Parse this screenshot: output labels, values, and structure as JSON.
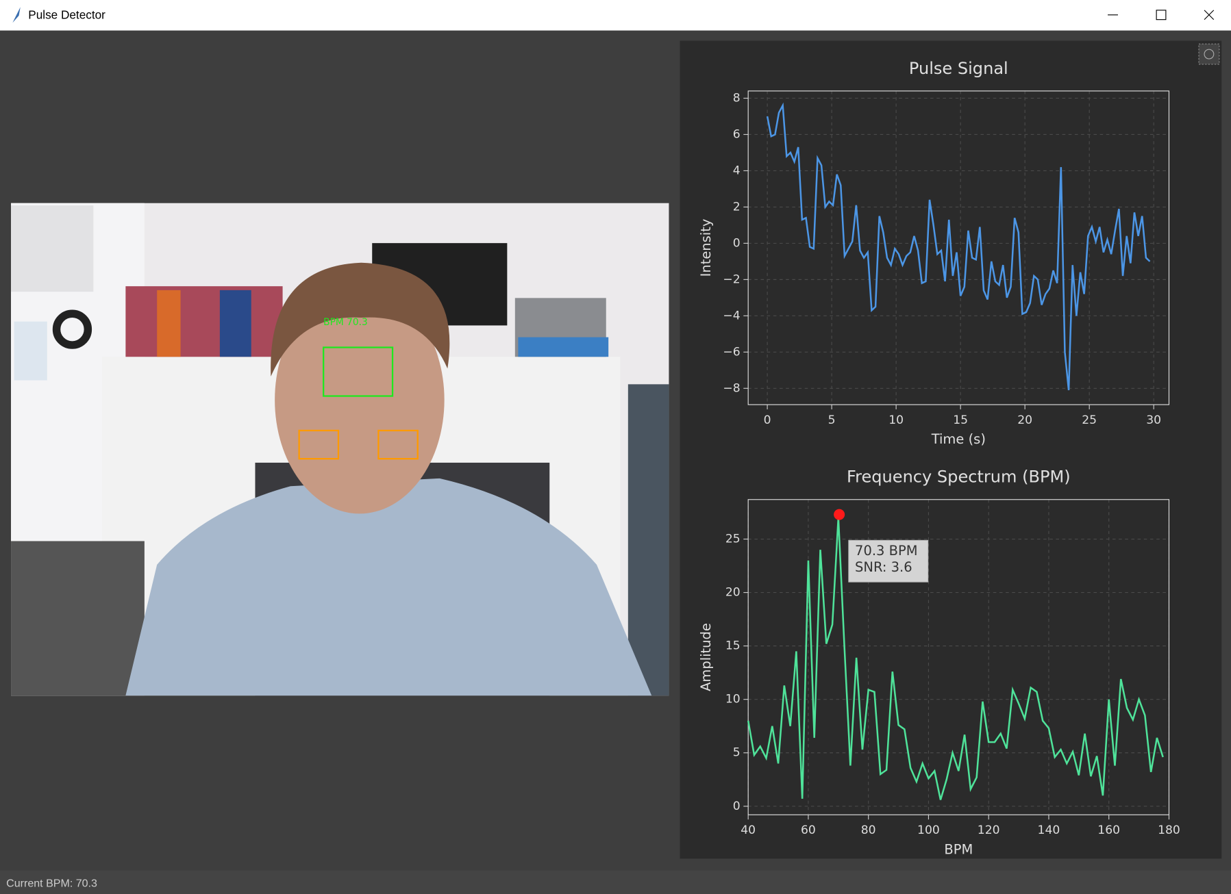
{
  "window": {
    "title": "Pulse Detector"
  },
  "video": {
    "overlay_label": "BPM 70.3"
  },
  "status": "Current BPM: 70.3",
  "chart_data": [
    {
      "type": "line",
      "title": "Pulse Signal",
      "x_label": "Time (s)",
      "y_label": "Intensity",
      "color": "#4c96e6",
      "grid": true,
      "x": [
        0,
        0.3,
        0.6,
        0.9,
        1.2,
        1.5,
        1.8,
        2.1,
        2.4,
        2.7,
        3.0,
        3.3,
        3.6,
        3.9,
        4.2,
        4.5,
        4.8,
        5.1,
        5.4,
        5.7,
        6.0,
        6.3,
        6.6,
        6.9,
        7.2,
        7.5,
        7.8,
        8.1,
        8.4,
        8.7,
        9.0,
        9.3,
        9.6,
        9.9,
        10.2,
        10.5,
        10.8,
        11.1,
        11.4,
        11.7,
        12.0,
        12.3,
        12.6,
        12.9,
        13.2,
        13.5,
        13.8,
        14.1,
        14.4,
        14.7,
        15.0,
        15.3,
        15.6,
        15.9,
        16.2,
        16.5,
        16.8,
        17.1,
        17.4,
        17.7,
        18.0,
        18.3,
        18.6,
        18.9,
        19.2,
        19.5,
        19.8,
        20.1,
        20.4,
        20.7,
        21.0,
        21.3,
        21.6,
        21.9,
        22.2,
        22.5,
        22.8,
        23.1,
        23.4,
        23.7,
        24.0,
        24.3,
        24.6,
        24.9,
        25.2,
        25.5,
        25.8,
        26.1,
        26.4,
        26.7,
        27.0,
        27.3,
        27.6,
        27.9,
        28.2,
        28.5,
        28.8,
        29.1,
        29.4,
        29.7
      ],
      "values": [
        7.0,
        5.9,
        6.0,
        7.2,
        7.6,
        4.8,
        5.0,
        4.5,
        5.3,
        1.3,
        1.4,
        -0.2,
        -0.3,
        4.7,
        4.3,
        2.0,
        2.3,
        2.1,
        3.8,
        3.2,
        -0.7,
        -0.3,
        0.1,
        2.1,
        -0.4,
        -0.8,
        -0.5,
        -3.7,
        -3.5,
        1.5,
        0.6,
        -0.8,
        -1.2,
        -0.3,
        -0.6,
        -1.2,
        -0.7,
        -0.5,
        0.4,
        -0.4,
        -2.2,
        -2.1,
        2.4,
        1.0,
        -0.6,
        -0.4,
        -2.1,
        1.3,
        -1.8,
        -0.5,
        -2.9,
        -2.4,
        0.7,
        -0.8,
        -0.9,
        0.9,
        -2.6,
        -3.1,
        -1.0,
        -2.1,
        -2.3,
        -1.2,
        -3.0,
        -2.4,
        1.4,
        0.6,
        -3.9,
        -3.8,
        -3.3,
        -1.8,
        -2.0,
        -3.4,
        -2.8,
        -2.5,
        -1.5,
        -2.2,
        4.2,
        -6.0,
        -8.1,
        -1.2,
        -4.0,
        -1.6,
        -2.8,
        0.4,
        0.9,
        0.1,
        0.9,
        -0.5,
        0.2,
        -0.6,
        0.7,
        1.9,
        -1.8,
        0.4,
        -1.1,
        1.7,
        0.4,
        1.5,
        -0.8,
        -1.0
      ],
      "xlim": [
        -1.485,
        31.185
      ],
      "xticks": [
        0,
        5,
        10,
        15,
        20,
        25,
        30
      ],
      "ylim": [
        -8.9,
        8.4
      ],
      "yticks": [
        {
          "value": -8,
          "label": "−8"
        },
        {
          "value": -6,
          "label": "−6"
        },
        {
          "value": -4,
          "label": "−4"
        },
        {
          "value": -2,
          "label": "−2"
        },
        0,
        2,
        4,
        6,
        8
      ]
    },
    {
      "type": "line",
      "title": "Frequency Spectrum (BPM)",
      "x_label": "BPM",
      "y_label": "Amplitude",
      "color": "#4fe39a",
      "grid": true,
      "x": [
        40,
        42,
        44,
        46,
        48,
        50,
        52,
        54,
        56,
        58,
        60,
        62,
        64,
        66,
        68,
        70,
        72,
        74,
        76,
        78,
        80,
        82,
        84,
        86,
        88,
        90,
        92,
        94,
        96,
        98,
        100,
        102,
        104,
        106,
        108,
        110,
        112,
        114,
        116,
        118,
        120,
        122,
        124,
        126,
        128,
        130,
        132,
        134,
        136,
        138,
        140,
        142,
        144,
        146,
        148,
        150,
        152,
        154,
        156,
        158,
        160,
        162,
        164,
        166,
        168,
        170,
        172,
        174,
        176,
        178
      ],
      "values": [
        8,
        4.8,
        5.6,
        4.5,
        7.5,
        4,
        11.3,
        7.5,
        14.5,
        0.7,
        23,
        6.4,
        24,
        15.2,
        17,
        27,
        15,
        3.8,
        13.9,
        5.3,
        10.9,
        10.7,
        3,
        3.4,
        12.6,
        7.6,
        7.2,
        3.6,
        2.3,
        4,
        2.6,
        3.3,
        0.6,
        2.5,
        5,
        3.3,
        6.7,
        1.6,
        2.7,
        9.8,
        6,
        6,
        6.8,
        5.4,
        10.9,
        9.6,
        8.2,
        11.1,
        10.7,
        8,
        7.3,
        4.6,
        5.3,
        4,
        5.1,
        2.9,
        6.8,
        2.8,
        4.7,
        1,
        10,
        3.8,
        11.9,
        9.2,
        8.1,
        10,
        8.5,
        3.2,
        6.4,
        4.6
      ],
      "xlim": [
        40,
        180
      ],
      "xticks": [
        40,
        60,
        80,
        100,
        120,
        140,
        160,
        180
      ],
      "ylim": [
        -0.8,
        28.7
      ],
      "yticks": [
        0,
        5,
        10,
        15,
        20,
        25
      ],
      "peak": {
        "x": 70.3,
        "y": 27.3,
        "color": "#ff1a1a"
      },
      "annotation": [
        "70.3 BPM",
        "SNR: 3.6"
      ]
    }
  ]
}
